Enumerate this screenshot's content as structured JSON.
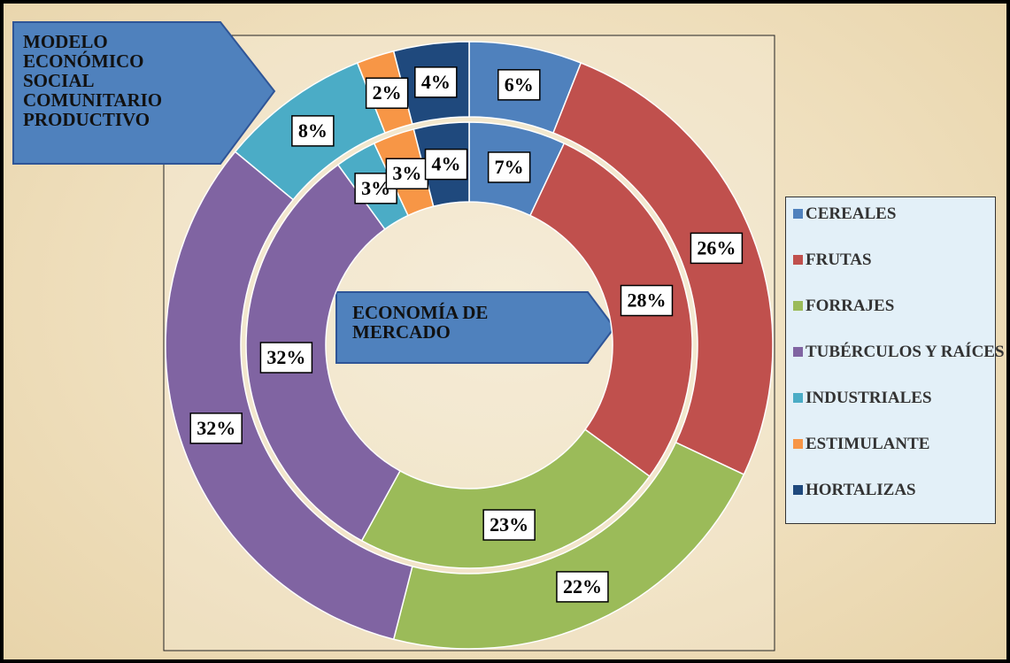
{
  "chart_data": {
    "type": "donut",
    "categories": [
      "CEREALES",
      "FRUTAS",
      "FORRAJES",
      "TUBÉRCULOS Y RAÍCES",
      "INDUSTRIALES",
      "ESTIMULANTE",
      "HORTALIZAS"
    ],
    "colors": [
      "#4f81bd",
      "#c0504d",
      "#9bbb59",
      "#8064a2",
      "#4bacc6",
      "#f79646",
      "#1f497d"
    ],
    "series": [
      {
        "name": "MODELO ECONÓMICO SOCIAL COMUNITARIO PRODUCTIVO",
        "values": [
          6,
          26,
          22,
          32,
          8,
          2,
          4
        ],
        "value_labels": [
          "6%",
          "26%",
          "22%",
          "32%",
          "8%",
          "2%",
          "4%"
        ]
      },
      {
        "name": "ECONOMÍA DE MERCADO",
        "values": [
          7,
          28,
          23,
          32,
          3,
          3,
          4
        ],
        "value_labels": [
          "7%",
          "28%",
          "23%",
          "32%",
          "3%",
          "3%",
          "4%"
        ]
      }
    ],
    "legend": "right"
  }
}
